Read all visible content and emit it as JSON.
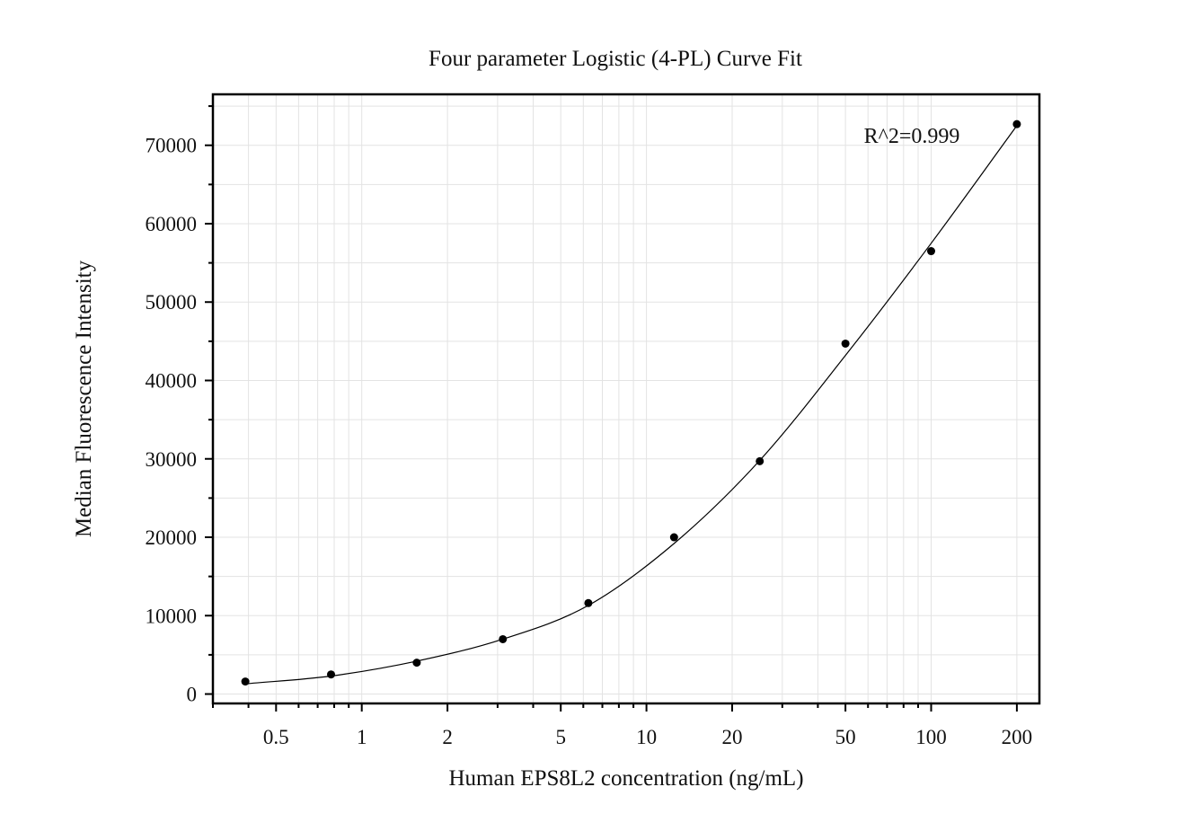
{
  "chart_data": {
    "type": "scatter",
    "title": "Four parameter Logistic (4-PL) Curve Fit",
    "xlabel": "Human EPS8L2 concentration (ng/mL)",
    "ylabel": "Median Fluorescence Intensity",
    "x_scale": "log",
    "xlim": [
      0.3,
      240
    ],
    "ylim": [
      -1200,
      76500
    ],
    "grid": true,
    "x_major_ticks": [
      0.5,
      1,
      2,
      5,
      10,
      20,
      50,
      100,
      200
    ],
    "x_tick_labels": [
      "0.5",
      "1",
      "2",
      "5",
      "10",
      "20",
      "50",
      "100",
      "200"
    ],
    "y_major_ticks": [
      0,
      10000,
      20000,
      30000,
      40000,
      50000,
      60000,
      70000
    ],
    "y_tick_labels": [
      "0",
      "10000",
      "20000",
      "30000",
      "40000",
      "50000",
      "60000",
      "70000"
    ],
    "series": [
      {
        "type": "scatter",
        "x": [
          0.39,
          0.78,
          1.56,
          3.13,
          6.25,
          12.5,
          25,
          50,
          100,
          200
        ],
        "y": [
          1600,
          2500,
          4000,
          7000,
          11600,
          20000,
          29700,
          44700,
          56500,
          72700
        ]
      },
      {
        "type": "line",
        "x": [
          0.39,
          0.78,
          1.56,
          3.13,
          6.25,
          12.5,
          25,
          50,
          100,
          200
        ],
        "y": [
          1300,
          2300,
          4200,
          7000,
          11300,
          19200,
          29800,
          43200,
          57500,
          72500
        ]
      }
    ],
    "annotation": "R^2=0.999"
  }
}
